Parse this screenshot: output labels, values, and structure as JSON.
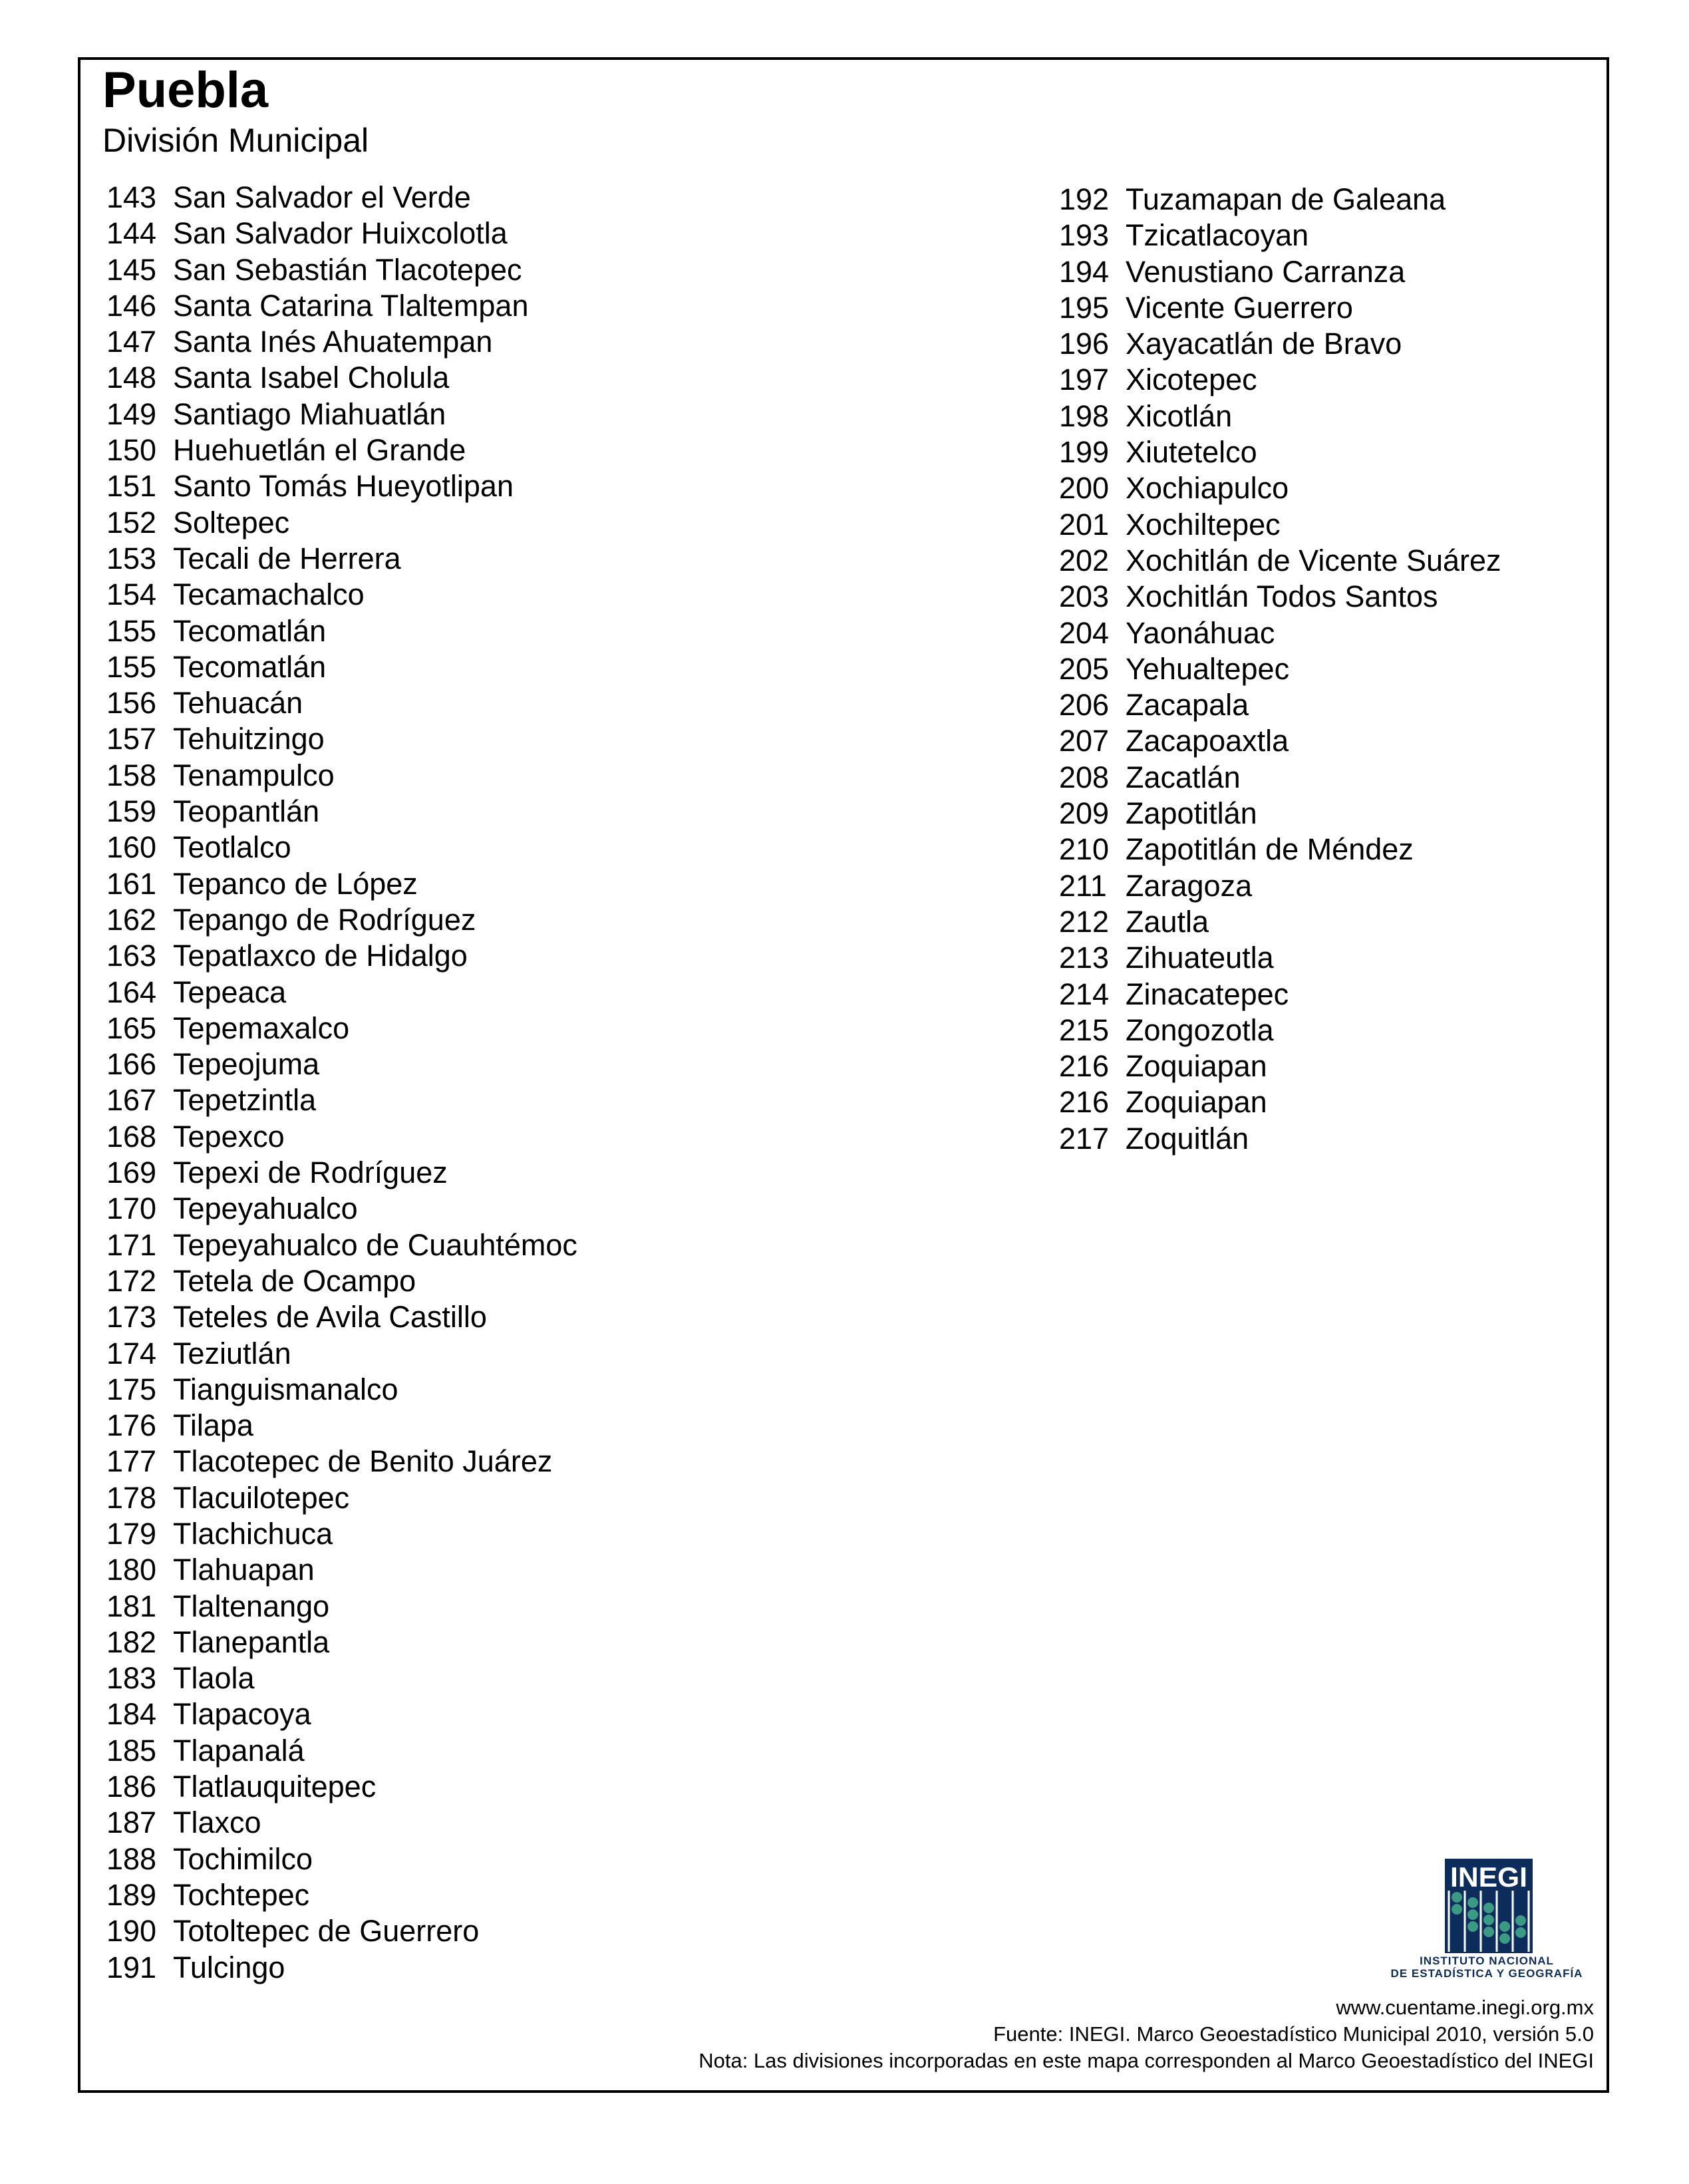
{
  "header": {
    "title": "Puebla",
    "subtitle": "División Municipal"
  },
  "left_column": [
    {
      "num": "143",
      "name": "San Salvador el Verde"
    },
    {
      "num": "144",
      "name": "San Salvador Huixcolotla"
    },
    {
      "num": "145",
      "name": "San Sebastián Tlacotepec"
    },
    {
      "num": "146",
      "name": "Santa Catarina Tlaltempan"
    },
    {
      "num": "147",
      "name": "Santa Inés Ahuatempan"
    },
    {
      "num": "148",
      "name": "Santa Isabel Cholula"
    },
    {
      "num": "149",
      "name": "Santiago Miahuatlán"
    },
    {
      "num": "150",
      "name": "Huehuetlán el Grande"
    },
    {
      "num": "151",
      "name": "Santo Tomás Hueyotlipan"
    },
    {
      "num": "152",
      "name": "Soltepec"
    },
    {
      "num": "153",
      "name": "Tecali de Herrera"
    },
    {
      "num": "154",
      "name": "Tecamachalco"
    },
    {
      "num": "155",
      "name": "Tecomatlán"
    },
    {
      "num": "155",
      "name": "Tecomatlán"
    },
    {
      "num": "156",
      "name": "Tehuacán"
    },
    {
      "num": "157",
      "name": "Tehuitzingo"
    },
    {
      "num": "158",
      "name": "Tenampulco"
    },
    {
      "num": "159",
      "name": "Teopantlán"
    },
    {
      "num": "160",
      "name": "Teotlalco"
    },
    {
      "num": "161",
      "name": "Tepanco de López"
    },
    {
      "num": "162",
      "name": "Tepango de Rodríguez"
    },
    {
      "num": "163",
      "name": "Tepatlaxco de Hidalgo"
    },
    {
      "num": "164",
      "name": "Tepeaca"
    },
    {
      "num": "165",
      "name": "Tepemaxalco"
    },
    {
      "num": "166",
      "name": "Tepeojuma"
    },
    {
      "num": "167",
      "name": "Tepetzintla"
    },
    {
      "num": "168",
      "name": "Tepexco"
    },
    {
      "num": "169",
      "name": "Tepexi de Rodríguez"
    },
    {
      "num": "170",
      "name": "Tepeyahualco"
    },
    {
      "num": "171",
      "name": "Tepeyahualco de Cuauhtémoc"
    },
    {
      "num": "172",
      "name": "Tetela de Ocampo"
    },
    {
      "num": "173",
      "name": "Teteles de Avila Castillo"
    },
    {
      "num": "174",
      "name": "Teziutlán"
    },
    {
      "num": "175",
      "name": "Tianguismanalco"
    },
    {
      "num": "176",
      "name": "Tilapa"
    },
    {
      "num": "177",
      "name": "Tlacotepec de Benito Juárez"
    },
    {
      "num": "178",
      "name": "Tlacuilotepec"
    },
    {
      "num": "179",
      "name": "Tlachichuca"
    },
    {
      "num": "180",
      "name": "Tlahuapan"
    },
    {
      "num": "181",
      "name": "Tlaltenango"
    },
    {
      "num": "182",
      "name": "Tlanepantla"
    },
    {
      "num": "183",
      "name": "Tlaola"
    },
    {
      "num": "184",
      "name": "Tlapacoya"
    },
    {
      "num": "185",
      "name": "Tlapanalá"
    },
    {
      "num": "186",
      "name": "Tlatlauquitepec"
    },
    {
      "num": "187",
      "name": "Tlaxco"
    },
    {
      "num": "188",
      "name": "Tochimilco"
    },
    {
      "num": "189",
      "name": "Tochtepec"
    },
    {
      "num": "190",
      "name": "Totoltepec de Guerrero"
    },
    {
      "num": "191",
      "name": "Tulcingo"
    }
  ],
  "right_column": [
    {
      "num": "192",
      "name": "Tuzamapan de Galeana"
    },
    {
      "num": "193",
      "name": "Tzicatlacoyan"
    },
    {
      "num": "194",
      "name": "Venustiano Carranza"
    },
    {
      "num": "195",
      "name": "Vicente Guerrero"
    },
    {
      "num": "196",
      "name": "Xayacatlán de Bravo"
    },
    {
      "num": "197",
      "name": "Xicotepec"
    },
    {
      "num": "198",
      "name": "Xicotlán"
    },
    {
      "num": "199",
      "name": "Xiutetelco"
    },
    {
      "num": "200",
      "name": "Xochiapulco"
    },
    {
      "num": "201",
      "name": "Xochiltepec"
    },
    {
      "num": "202",
      "name": "Xochitlán de Vicente Suárez"
    },
    {
      "num": "203",
      "name": "Xochitlán Todos Santos"
    },
    {
      "num": "204",
      "name": "Yaonáhuac"
    },
    {
      "num": "205",
      "name": "Yehualtepec"
    },
    {
      "num": "206",
      "name": "Zacapala"
    },
    {
      "num": "207",
      "name": "Zacapoaxtla"
    },
    {
      "num": "208",
      "name": "Zacatlán"
    },
    {
      "num": "209",
      "name": "Zapotitlán"
    },
    {
      "num": "210",
      "name": "Zapotitlán de Méndez"
    },
    {
      "num": "211",
      "name": "Zaragoza"
    },
    {
      "num": "212",
      "name": "Zautla"
    },
    {
      "num": "213",
      "name": "Zihuateutla"
    },
    {
      "num": "214",
      "name": "Zinacatepec"
    },
    {
      "num": "215",
      "name": "Zongozotla"
    },
    {
      "num": "216",
      "name": "Zoquiapan"
    },
    {
      "num": "216",
      "name": "Zoquiapan"
    },
    {
      "num": "217",
      "name": "Zoquitlán"
    }
  ],
  "logo": {
    "wordmark": "INEGI",
    "line1": "INSTITUTO NACIONAL",
    "line2": "DE ESTADÍSTICA Y GEOGRAFÍA",
    "navy": "#0c2d5c",
    "bead": "#3a9a84"
  },
  "footer": {
    "url": "www.cuentame.inegi.org.mx",
    "source": "Fuente: INEGI. Marco Geoestadístico Municipal 2010, versión 5.0",
    "note": "Nota: Las divisiones incorporadas en este mapa corresponden al Marco Geoestadístico del INEGI"
  }
}
